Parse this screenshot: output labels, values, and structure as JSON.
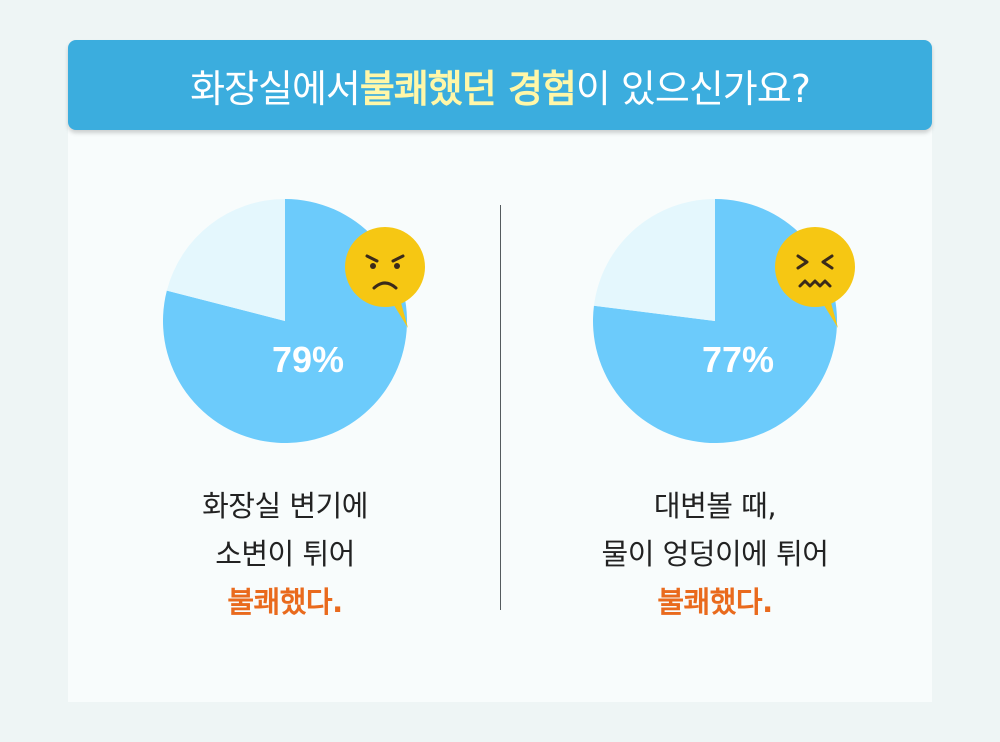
{
  "header": {
    "title_pre": "화장실에서 ",
    "title_hl": "불쾌했던 경험",
    "title_post": "이 있으신가요?"
  },
  "colors": {
    "banner": "#3badde",
    "highlight": "#fff7a8",
    "pie_main": "#6ccbfb",
    "pie_rest": "#e4f7fd",
    "emphasis": "#e96a1d",
    "emoji": "#f6c713"
  },
  "chart_data": [
    {
      "type": "pie",
      "slices": [
        {
          "label": "79%",
          "value": 79,
          "color": "#6ccbfb"
        },
        {
          "label": "",
          "value": 21,
          "color": "#e4f7fd"
        }
      ],
      "emoji": "angry-face-icon",
      "caption_lines": [
        "화장실 변기에",
        "소변이 튀어"
      ],
      "caption_emphasis": "불쾌했다."
    },
    {
      "type": "pie",
      "slices": [
        {
          "label": "77%",
          "value": 77,
          "color": "#6ccbfb"
        },
        {
          "label": "",
          "value": 23,
          "color": "#e4f7fd"
        }
      ],
      "emoji": "disgusted-face-icon",
      "caption_lines": [
        "대변볼 때,",
        "물이 엉덩이에 튀어"
      ],
      "caption_emphasis": "불쾌했다."
    }
  ]
}
